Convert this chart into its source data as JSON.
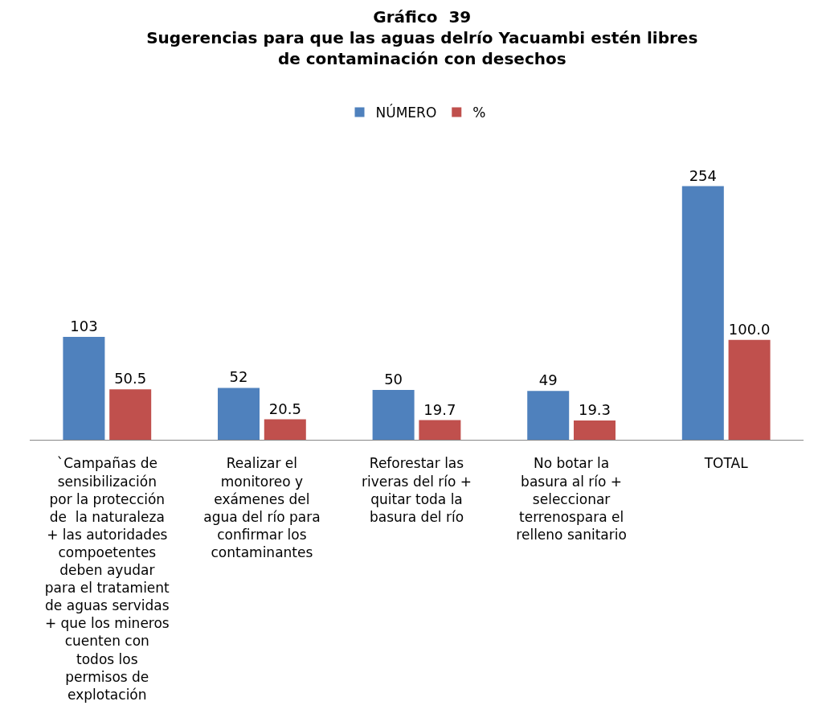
{
  "chart_data": {
    "type": "bar",
    "title": "Gráfico  39\nSugerencias para que las aguas delrío Yacuambi estén libres\nde contaminación con desechos",
    "categories": [
      "`Campañas de\nsensibilización\npor la protección\nde  la naturaleza\n+ las autoridades\ncompoetentes\ndeben ayudar\npara el tratamient\nde aguas servidas\n+ que los mineros\ncuenten con\ntodos los\npermisos de\nexplotación",
      "Realizar el\nmonitoreo y\nexámenes del\nagua del río para\nconfirmar los\ncontaminantes",
      "Reforestar las\nriveras del río +\nquitar toda la\nbasura del río",
      "No botar la\nbasura al río +\nseleccionar\nterrenospara el\nrelleno sanitario",
      "TOTAL"
    ],
    "series": [
      {
        "name": "NÚMERO",
        "color": "#4f81bd",
        "values": [
          103,
          52,
          50,
          49,
          254
        ],
        "value_labels": [
          "103",
          "52",
          "50",
          "49",
          "254"
        ]
      },
      {
        "name": "%",
        "color": "#c0504d",
        "values": [
          50.5,
          20.5,
          19.7,
          19.3,
          100.0
        ],
        "value_labels": [
          "50.5",
          "20.5",
          "19.7",
          "19.3",
          "100.0"
        ]
      }
    ],
    "legend": "top"
  }
}
